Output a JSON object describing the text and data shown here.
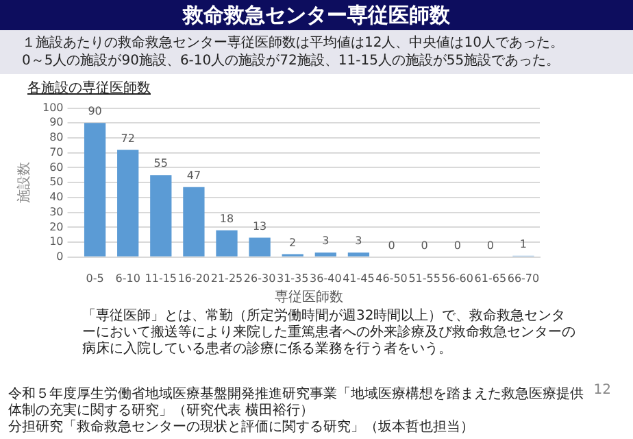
{
  "chart_data": {
    "type": "bar",
    "title": "救命救急センター専従医師数",
    "subtitle": "１施設あたりの救命救急センター専従医師数は平均値は12人、中央値は10人であった。\n0～5人の施設が90施設、6-10人の施設が72施設、11-15人の施設が55施設であった。",
    "categories": [
      "0-5",
      "6-10",
      "11-15",
      "16-20",
      "21-25",
      "26-30",
      "31-35",
      "36-40",
      "41-45",
      "46-50",
      "51-55",
      "56-60",
      "61-65",
      "66-70"
    ],
    "values": [
      90,
      72,
      55,
      47,
      18,
      13,
      2,
      3,
      3,
      0,
      0,
      0,
      0,
      1
    ],
    "colors": [
      "#5b9bd5",
      "#5b9bd5",
      "#5b9bd5",
      "#5b9bd5",
      "#5b9bd5",
      "#5b9bd5",
      "#5b9bd5",
      "#5b9bd5",
      "#5b9bd5",
      "#5b9bd5",
      "#5b9bd5",
      "#5b9bd5",
      "#5b9bd5",
      "#9dc3e6"
    ],
    "xlabel": "専従医師数",
    "ylabel": "施設数",
    "ylim": [
      0,
      100
    ],
    "yticks": [
      0,
      10,
      20,
      30,
      40,
      50,
      60,
      70,
      80,
      90,
      100
    ],
    "grid": "y",
    "data_labels": true,
    "annotations": [
      "各施設の専従医師数",
      "「専従医師」とは、常勤（所定労働時間が週32時間以上）で、救命救急センターにおいて搬送等により来院した重篤患者への外来診療及び救命救急センターの病床に入院している患者の診療に係る業務を行う者をいう。",
      "令和５年度厚生労働省地域医療基盤開発推進研究事業「地域医療構想を踏まえた救急医療提供体制の充実に関する研究」（研究代表 横田裕行）",
      "分担研究「救命救急センターの現状と評価に関する研究」（坂本哲也担当）",
      "12"
    ]
  }
}
